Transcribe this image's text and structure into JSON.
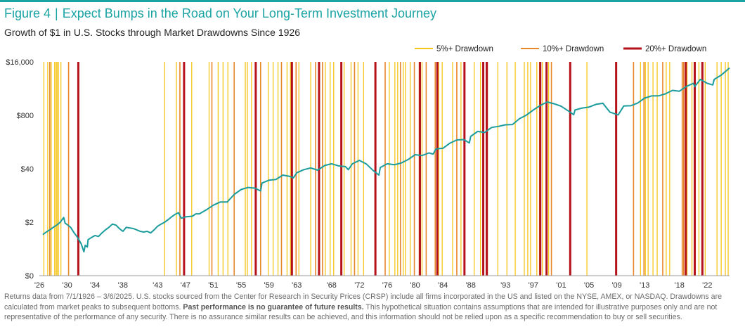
{
  "figure": {
    "number": "Figure 4",
    "title": "Expect Bumps in the Road on Your Long-Term Investment Journey",
    "subtitle": "Growth of $1 in U.S. Stocks through Market Drawdowns Since 1926"
  },
  "chart_data": {
    "type": "line",
    "title": "Growth of $1 in U.S. Stocks through Market Drawdowns Since 1926",
    "xlabel": "",
    "ylabel": "",
    "y_scale": "log",
    "ylim": [
      0.1,
      16000
    ],
    "xlim": [
      1926,
      2025.2
    ],
    "y_ticks": [
      {
        "value": 0.1,
        "label": "$0"
      },
      {
        "value": 2,
        "label": "$2"
      },
      {
        "value": 40,
        "label": "$40"
      },
      {
        "value": 800,
        "label": "$800"
      },
      {
        "value": 16000,
        "label": "$16,000"
      }
    ],
    "x_ticks": [
      {
        "value": 1926,
        "label": "'26"
      },
      {
        "value": 1930,
        "label": "'30"
      },
      {
        "value": 1934,
        "label": "'34"
      },
      {
        "value": 1938,
        "label": "'38"
      },
      {
        "value": 1943,
        "label": "'43"
      },
      {
        "value": 1947,
        "label": "'47"
      },
      {
        "value": 1951,
        "label": "'51"
      },
      {
        "value": 1955,
        "label": "'55"
      },
      {
        "value": 1959,
        "label": "'59"
      },
      {
        "value": 1963,
        "label": "'63"
      },
      {
        "value": 1968,
        "label": "'68"
      },
      {
        "value": 1972,
        "label": "'72"
      },
      {
        "value": 1976,
        "label": "'76"
      },
      {
        "value": 1980,
        "label": "'80"
      },
      {
        "value": 1984,
        "label": "'84"
      },
      {
        "value": 1988,
        "label": "'88"
      },
      {
        "value": 1993,
        "label": "'93"
      },
      {
        "value": 1997,
        "label": "'97"
      },
      {
        "value": 2001,
        "label": "'01"
      },
      {
        "value": 2005,
        "label": "'05"
      },
      {
        "value": 2009,
        "label": "'09"
      },
      {
        "value": 2013,
        "label": "'13"
      },
      {
        "value": 2018,
        "label": "'18"
      },
      {
        "value": 2022,
        "label": "'22"
      }
    ],
    "grid": false,
    "legend_position": "top-right",
    "legend": [
      {
        "label": "5%+ Drawdown",
        "color": "#f5c518"
      },
      {
        "label": "10%+ Drawdown",
        "color": "#e8862a"
      },
      {
        "label": "20%+ Drawdown",
        "color": "#b5121b"
      }
    ],
    "series": [
      {
        "color": "#1b9c9c",
        "x": [
          1926.5,
          1927,
          1927.5,
          1928,
          1928.5,
          1929,
          1929.5,
          1929.7,
          1930,
          1930.5,
          1931,
          1931.5,
          1932,
          1932.4,
          1932.6,
          1932.9,
          1933,
          1933.5,
          1934,
          1934.5,
          1935,
          1935.5,
          1936,
          1936.5,
          1937,
          1937.5,
          1938,
          1938.5,
          1939,
          1939.5,
          1940,
          1940.5,
          1941,
          1941.5,
          1942,
          1942.5,
          1943,
          1943.5,
          1944,
          1944.5,
          1945,
          1945.5,
          1946,
          1946.4,
          1946.8,
          1947,
          1948,
          1948.5,
          1949,
          1950,
          1951,
          1952,
          1953,
          1954,
          1955,
          1956,
          1957,
          1957.8,
          1958,
          1959,
          1960,
          1961,
          1962,
          1962.5,
          1963,
          1964,
          1965,
          1966,
          1967,
          1968,
          1969,
          1970,
          1970.4,
          1971,
          1972,
          1973,
          1974,
          1974.8,
          1975,
          1976,
          1977,
          1978,
          1979,
          1980,
          1981,
          1982,
          1982.6,
          1983,
          1984,
          1985,
          1986,
          1987,
          1987.8,
          1988,
          1989,
          1990,
          1991,
          1992,
          1993,
          1994,
          1995,
          1996,
          1997,
          1998,
          1999,
          2000,
          2001,
          2002,
          2002.8,
          2003,
          2004,
          2005,
          2006,
          2007,
          2008,
          2009.2,
          2010,
          2011,
          2012,
          2013,
          2014,
          2015,
          2016,
          2017,
          2018,
          2019,
          2020,
          2020.2,
          2021,
          2022,
          2022.8,
          2023,
          2024,
          2025.2
        ],
        "values": [
          1.0,
          1.15,
          1.3,
          1.5,
          1.7,
          2.0,
          2.6,
          1.9,
          1.75,
          1.5,
          1.1,
          0.85,
          0.6,
          0.38,
          0.55,
          0.5,
          0.75,
          0.85,
          0.95,
          0.9,
          1.1,
          1.3,
          1.5,
          1.8,
          1.7,
          1.4,
          1.2,
          1.5,
          1.45,
          1.4,
          1.3,
          1.2,
          1.15,
          1.2,
          1.1,
          1.3,
          1.6,
          1.8,
          2.0,
          2.3,
          2.7,
          3.1,
          3.4,
          2.5,
          2.6,
          2.7,
          2.8,
          3.2,
          3.2,
          4.0,
          5.2,
          6.2,
          6.2,
          9.5,
          12.5,
          14,
          13.5,
          11.5,
          18,
          21,
          22,
          28,
          26,
          24,
          32,
          38,
          42,
          37,
          48,
          53,
          47,
          45,
          38,
          53,
          64,
          52,
          36,
          28,
          43,
          53,
          50,
          55,
          67,
          88,
          84,
          97,
          91,
          122,
          126,
          168,
          201,
          205,
          170,
          245,
          324,
          306,
          404,
          431,
          470,
          477,
          660,
          810,
          1080,
          1390,
          1690,
          1530,
          1330,
          1030,
          830,
          1080,
          1200,
          1270,
          1480,
          1570,
          960,
          820,
          1350,
          1370,
          1590,
          2100,
          2370,
          2380,
          2670,
          3240,
          3090,
          4050,
          4800,
          4000,
          6000,
          4800,
          4400,
          6000,
          7600,
          11400
        ]
      }
    ],
    "drawdowns": [
      {
        "level": 5,
        "dates": [
          1926.65,
          1927.2,
          1927.7,
          1928.2,
          1928.4,
          1928.55,
          1928.75,
          1929.1,
          1944.0,
          1945.7,
          1947.9,
          1950.4,
          1951.7,
          1952.4,
          1953.1,
          1955.6,
          1955.9,
          1956.5,
          1958.9,
          1959.6,
          1960.3,
          1961.6,
          1962.1,
          1963.3,
          1965.0,
          1967.1,
          1967.8,
          1968.3,
          1969.8,
          1970.8,
          1971.8,
          1972.6,
          1976.3,
          1977.1,
          1977.5,
          1978.3,
          1978.6,
          1979.3,
          1981.0,
          1983.4,
          1983.9,
          1985.4,
          1986.6,
          1988.5,
          1989.4,
          1991.9,
          1993.2,
          1994.4,
          1995.7,
          1996.2,
          1996.6,
          1997.5,
          1998.0,
          1998.3,
          1999.2,
          2004.7,
          2012.4,
          2013.1,
          2013.5,
          2014.2,
          2014.8,
          2016.1,
          2016.6,
          2019.1,
          2019.8,
          2020.8,
          2021.7,
          2023.4,
          2024.0,
          2024.6,
          2025.0
        ]
      },
      {
        "level": 10,
        "dates": [
          1927.5,
          1930.2,
          1946.2,
          1950.8,
          1954.0,
          1957.8,
          1960.8,
          1962.9,
          1965.7,
          1966.7,
          1971.3,
          1975.7,
          1977.9,
          1979.9,
          1980.6,
          1981.6,
          1982.9,
          1986.0,
          1990.4,
          1997.9,
          1999.6,
          2011.4,
          2012.9,
          2015.6,
          2018.4,
          2018.6
        ]
      },
      {
        "level": 20,
        "dates": [
          1931.6,
          1946.8,
          1957.1,
          1962.3,
          1966.2,
          1969.4,
          1974.3,
          1980.7,
          1983.2,
          1987.1,
          1989.8,
          1990.3,
          1998.0,
          1998.9,
          2002.3,
          2008.9,
          2018.9,
          2020.2,
          2021.3
        ]
      }
    ]
  },
  "footnote": {
    "part1": "Returns data from 7/1/1926 – 3/6/2025. U.S. stocks sourced from the Center for Research in Security Prices (CRSP) include all firms incorporated in the US and listed on the NYSE, AMEX, or NASDAQ. Drawdowns are calculated from market peaks to subsequent bottoms. ",
    "bold": "Past performance is no guarantee of future results.",
    "part2": " This hypothetical situation contains assumptions that are intended for illustrative purposes only and are not representative of the performance of any security. There is no assurance similar results can be achieved, and this information should not be relied upon as a specific recommendation to buy or sell securities."
  }
}
